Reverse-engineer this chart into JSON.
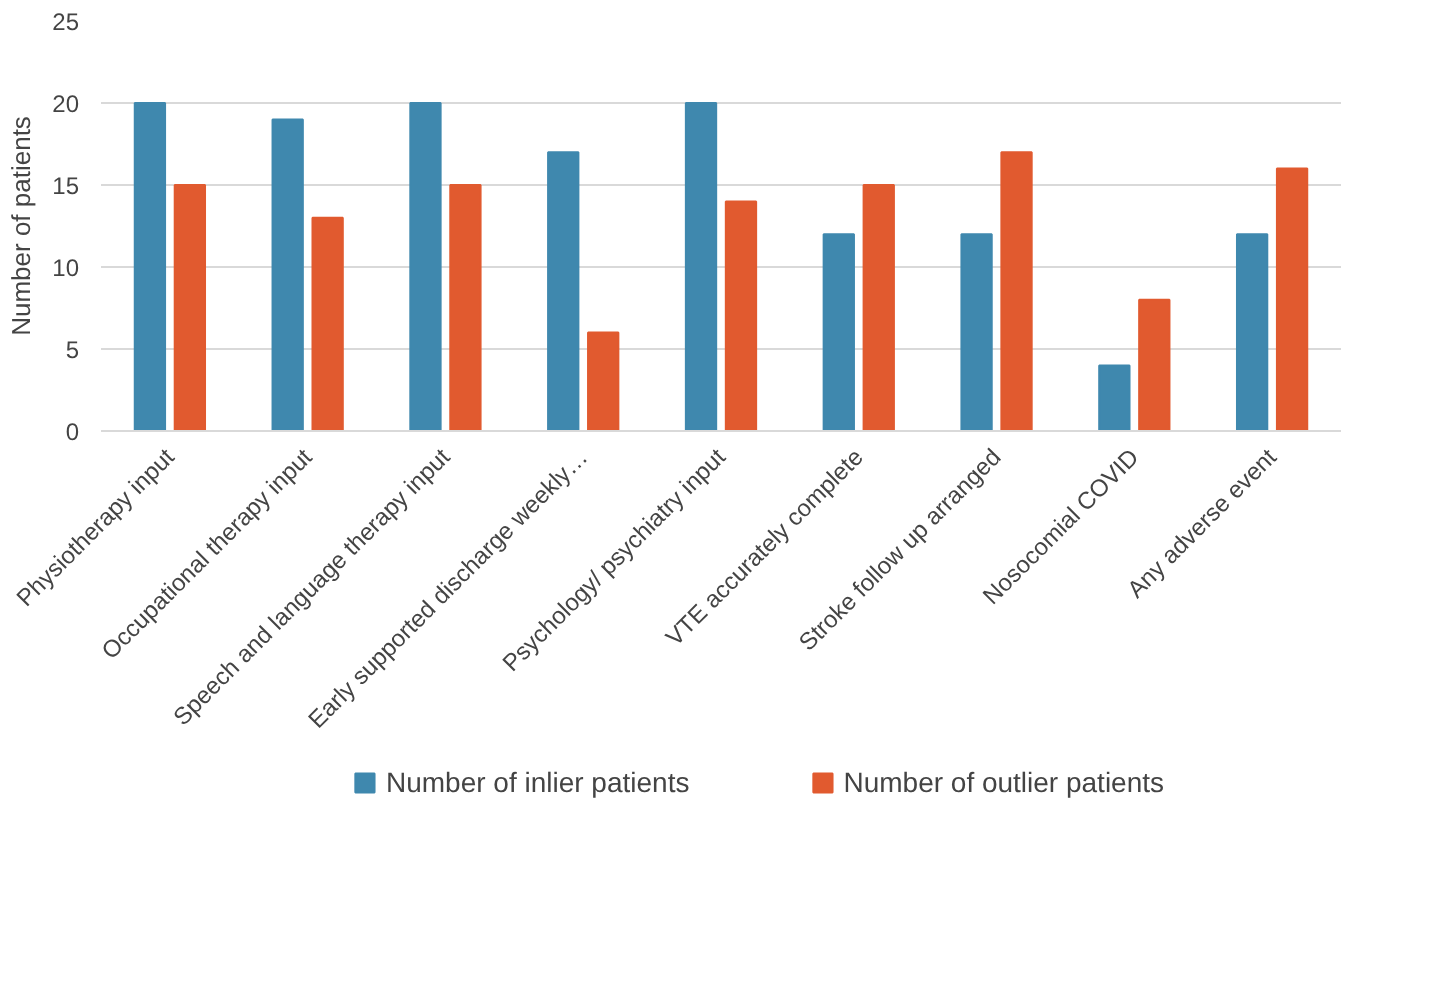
{
  "chart_data": {
    "type": "bar",
    "ylabel": "Number of patients",
    "categories": [
      "Physiotherapy input",
      "Occupational therapy input",
      "Speech and language therapy input",
      "Early supported discharge weekly…",
      "Psychology/ psychiatry input",
      "VTE accurately complete",
      "Stroke follow up arranged",
      "Nosocomial COVID",
      "Any adverse event"
    ],
    "series": [
      {
        "name": "Number of inlier patients",
        "color": "#3f88ae",
        "values": [
          20,
          19,
          20,
          17,
          20,
          12,
          12,
          4,
          12
        ]
      },
      {
        "name": "Number of outlier patients",
        "color": "#e15a2f",
        "values": [
          15,
          13,
          15,
          6,
          14,
          15,
          17,
          8,
          16
        ]
      }
    ],
    "ylim": [
      0,
      25
    ],
    "yticks": [
      0,
      5,
      10,
      15,
      20,
      25
    ],
    "grid": "y",
    "legend": "bottom"
  }
}
